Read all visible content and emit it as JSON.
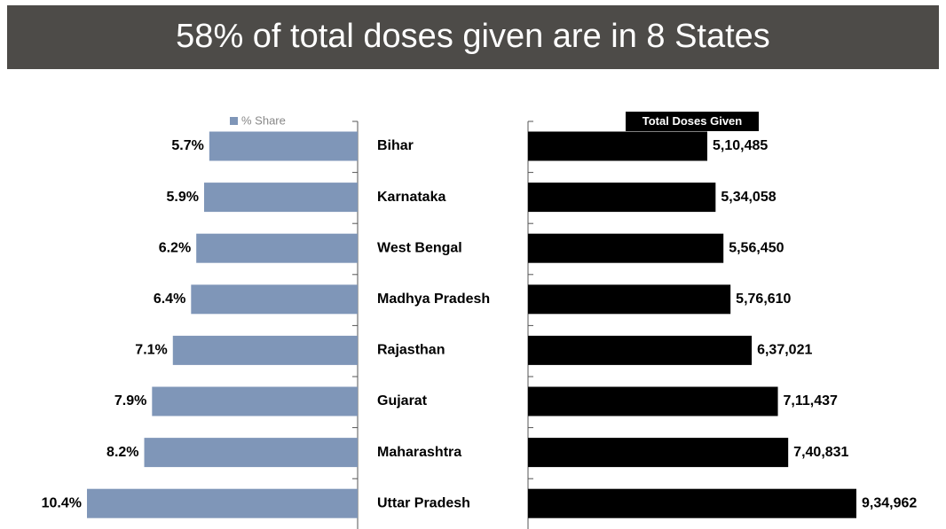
{
  "title": "58% of total doses given are in 8 States",
  "chart_data": [
    {
      "type": "bar",
      "orientation": "horizontal",
      "direction": "left",
      "legend": "% Share",
      "color": "#7f96b8",
      "categories": [
        "Bihar",
        "Karnataka",
        "West Bengal",
        "Madhya Pradesh",
        "Rajasthan",
        "Gujarat",
        "Maharashtra",
        "Uttar Pradesh"
      ],
      "values": [
        5.7,
        5.9,
        6.2,
        6.4,
        7.1,
        7.9,
        8.2,
        10.4
      ],
      "value_labels": [
        "5.7%",
        "5.9%",
        "6.2%",
        "6.4%",
        "7.1%",
        "7.9%",
        "8.2%",
        "10.4%"
      ]
    },
    {
      "type": "bar",
      "orientation": "horizontal",
      "direction": "right",
      "legend": "Total Doses Given",
      "color": "#000000",
      "categories": [
        "Bihar",
        "Karnataka",
        "West Bengal",
        "Madhya Pradesh",
        "Rajasthan",
        "Gujarat",
        "Maharashtra",
        "Uttar Pradesh"
      ],
      "values": [
        510485,
        534058,
        556450,
        576610,
        637021,
        711437,
        740831,
        934962
      ],
      "value_labels": [
        "5,10,485",
        "5,34,058",
        "5,56,450",
        "5,76,610",
        "6,37,021",
        "7,11,437",
        "7,40,831",
        "9,34,962"
      ]
    }
  ]
}
